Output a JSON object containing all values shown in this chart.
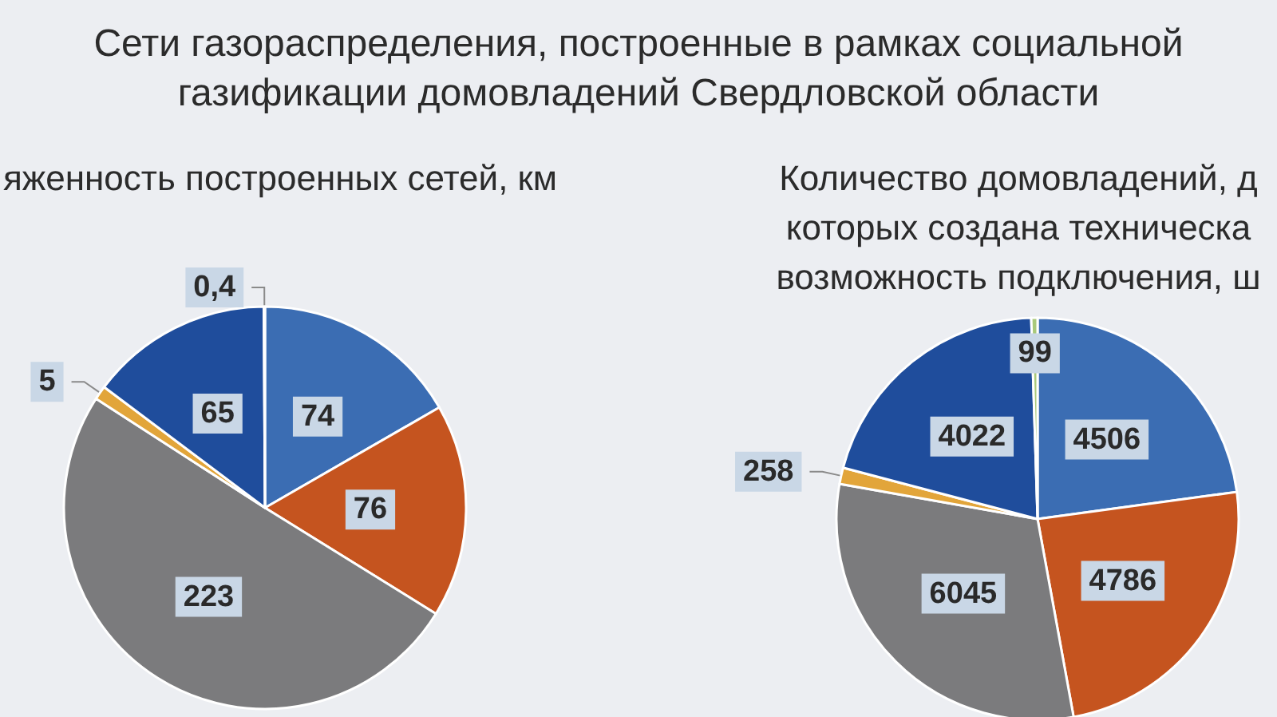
{
  "chart_data": [
    {
      "type": "pie",
      "title": "Сети газораспределения, построенные в рамках социальной газификации домовладений Свердловской области",
      "subtitle": "яженность построенных сетей, км",
      "categories": [
        null,
        null,
        null,
        null,
        null,
        null
      ],
      "values": [
        74,
        76,
        223,
        5,
        65,
        0.4
      ],
      "value_labels": [
        "74",
        "76",
        "223",
        "5",
        "65",
        "0,4"
      ],
      "colors": [
        "#3b6db3",
        "#c5541f",
        "#7b7b7d",
        "#e2a53a",
        "#1f4d9c",
        "#a9c97a"
      ]
    },
    {
      "type": "pie",
      "title": "Количество домовладений, д которых создана техническа возможность подключения, ш",
      "categories": [
        null,
        null,
        null,
        null,
        null,
        null
      ],
      "values": [
        4506,
        4786,
        6045,
        258,
        4022,
        99
      ],
      "data_labels": true,
      "colors": [
        "#3b6db3",
        "#c5541f",
        "#7b7b7d",
        "#e2a53a",
        "#1f4d9c",
        "#a9c97a"
      ]
    }
  ]
}
